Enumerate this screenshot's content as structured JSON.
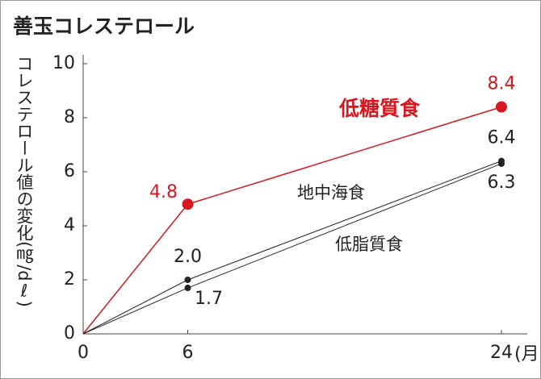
{
  "chart_data": {
    "type": "line",
    "title": "善玉コレステロール",
    "y_label": "コレステロール値の変化(㎎/dℓ)",
    "x_label": "(月)",
    "x": [
      0,
      6,
      24
    ],
    "xlim": [
      0,
      24
    ],
    "xticks": [
      0,
      6,
      24
    ],
    "ylim": [
      0,
      10
    ],
    "yticks": [
      0,
      2,
      4,
      6,
      8,
      10
    ],
    "series": [
      {
        "name": "低糖質食",
        "color": "#d7171f",
        "values": [
          0,
          4.8,
          8.4
        ],
        "value_labels": [
          null,
          "4.8",
          "8.4"
        ]
      },
      {
        "name": "地中海食",
        "color": "#222222",
        "values": [
          0,
          2.0,
          6.4
        ],
        "value_labels": [
          null,
          "2.0",
          "6.4"
        ]
      },
      {
        "name": "低脂質食",
        "color": "#222222",
        "values": [
          0,
          1.7,
          6.3
        ],
        "value_labels": [
          null,
          "1.7",
          "6.3"
        ]
      }
    ]
  }
}
